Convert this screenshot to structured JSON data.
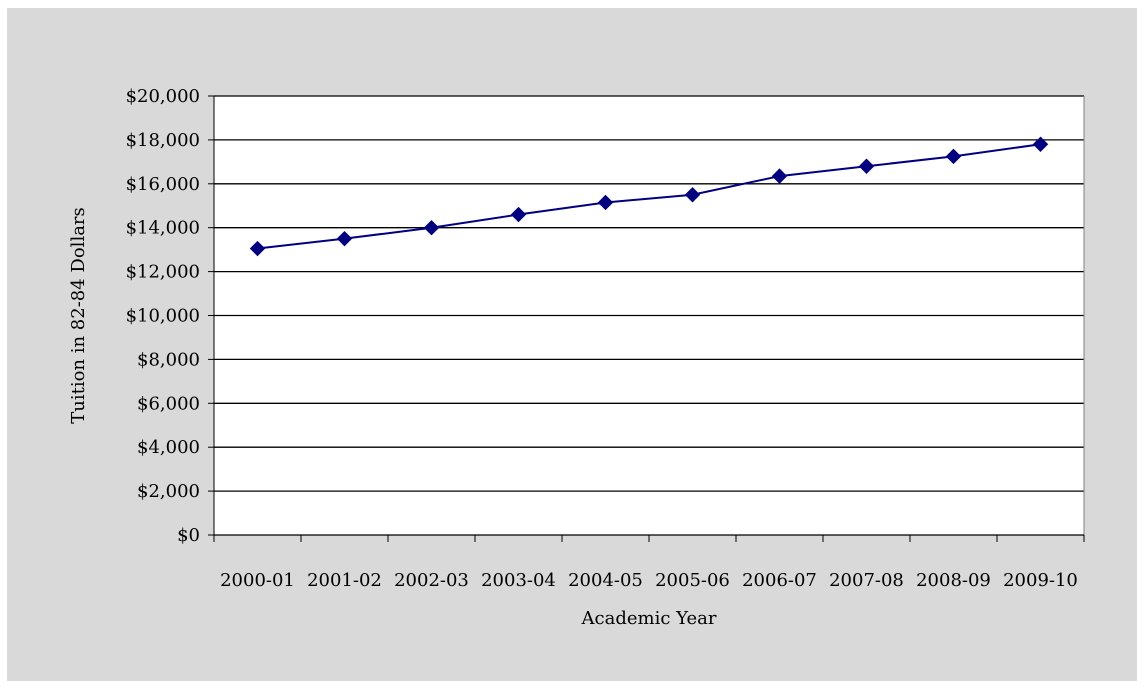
{
  "chart_data": {
    "type": "line",
    "title": "",
    "xlabel": "Academic Year",
    "ylabel": "Tuition in 82-84 Dollars",
    "categories": [
      "2000-01",
      "2001-02",
      "2002-03",
      "2003-04",
      "2004-05",
      "2005-06",
      "2006-07",
      "2007-08",
      "2008-09",
      "2009-10"
    ],
    "series": [
      {
        "values": [
          13050,
          13500,
          14000,
          14600,
          15150,
          15500,
          16350,
          16800,
          17250,
          17800
        ]
      }
    ],
    "ylim": [
      0,
      20000
    ],
    "ytick_step": 2000,
    "ytick_labels": [
      "$0",
      "$2,000",
      "$4,000",
      "$6,000",
      "$8,000",
      "$10,000",
      "$12,000",
      "$14,000",
      "$16,000",
      "$18,000",
      "$20,000"
    ],
    "grid": true,
    "legend": "none",
    "line_color": "#000080",
    "marker": "diamond",
    "background_color": "#d9d9d9",
    "plot_background_color": "#ffffff"
  }
}
